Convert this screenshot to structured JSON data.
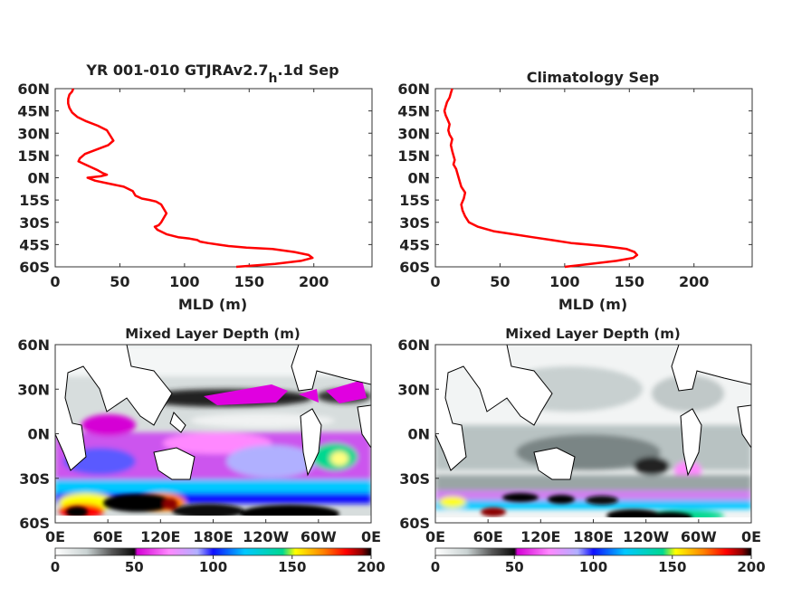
{
  "chart_data": [
    {
      "type": "line",
      "title": "YR 001-010 GTJRAv2.7",
      "title_sub": "h",
      "title_suffix": ".1d Sep",
      "xlabel": "MLD (m)",
      "ylabel": "",
      "xlim": [
        0,
        245
      ],
      "ylim": [
        -60,
        60
      ],
      "xticks": [
        "0",
        "50",
        "100",
        "150",
        "200"
      ],
      "xtick_values": [
        0,
        50,
        100,
        150,
        200
      ],
      "yticks": [
        "60N",
        "45N",
        "30N",
        "15N",
        "0N",
        "15S",
        "30S",
        "45S",
        "60S"
      ],
      "ytick_values": [
        60,
        45,
        30,
        15,
        0,
        -15,
        -30,
        -45,
        -60
      ],
      "line_color": "#ff0000",
      "series": [
        {
          "x": [
            14,
            13,
            11,
            10,
            10,
            11,
            13,
            17,
            24,
            33,
            40,
            45,
            41,
            32,
            23,
            19,
            18,
            23,
            28,
            33,
            37,
            40,
            35,
            25,
            31,
            42,
            53,
            60,
            62,
            67,
            73,
            78,
            82,
            84,
            86,
            84,
            82,
            80,
            77,
            79,
            86,
            95,
            104,
            110,
            112,
            118,
            126,
            134,
            148,
            168,
            185,
            196,
            199,
            190,
            170,
            140
          ],
          "y": [
            60,
            58,
            56,
            53,
            50,
            47,
            44,
            41,
            38,
            35,
            32,
            25,
            22,
            19,
            16,
            13,
            11,
            9,
            7,
            5,
            3,
            2,
            1,
            0,
            -2,
            -4,
            -6,
            -9,
            -12,
            -14,
            -15,
            -16,
            -18,
            -21,
            -24,
            -27,
            -30,
            -32,
            -33,
            -35,
            -38,
            -40,
            -41,
            -42,
            -43,
            -44,
            -45,
            -46,
            -47,
            -48,
            -50,
            -52,
            -54,
            -56,
            -58,
            -60
          ]
        }
      ]
    },
    {
      "type": "line",
      "title": "Climatology Sep",
      "xlabel": "MLD (m)",
      "ylabel": "",
      "xlim": [
        0,
        245
      ],
      "ylim": [
        -60,
        60
      ],
      "xticks": [
        "0",
        "50",
        "100",
        "150",
        "200"
      ],
      "xtick_values": [
        0,
        50,
        100,
        150,
        200
      ],
      "yticks": [
        "60N",
        "45N",
        "30N",
        "15N",
        "0N",
        "15S",
        "30S",
        "45S",
        "60S"
      ],
      "ytick_values": [
        60,
        45,
        30,
        15,
        0,
        -15,
        -30,
        -45,
        -60
      ],
      "line_color": "#ff0000",
      "series": [
        {
          "x": [
            13,
            12,
            11,
            9,
            8,
            7,
            8,
            9,
            11,
            10,
            11,
            13,
            12,
            13,
            14,
            15,
            14,
            16,
            17,
            18,
            19,
            20,
            23,
            22,
            20,
            21,
            23,
            26,
            33,
            45,
            60,
            75,
            90,
            105,
            118,
            130,
            140,
            148,
            154,
            156,
            153,
            140,
            120,
            100
          ],
          "y": [
            60,
            57,
            54,
            51,
            48,
            45,
            42,
            40,
            36,
            32,
            29,
            26,
            22,
            18,
            15,
            12,
            9,
            6,
            3,
            0,
            -3,
            -6,
            -10,
            -14,
            -18,
            -22,
            -26,
            -30,
            -33,
            -36,
            -38,
            -40,
            -42,
            -44,
            -45,
            -46,
            -47,
            -48,
            -50,
            -52,
            -54,
            -56,
            -58,
            -60
          ]
        }
      ]
    },
    {
      "type": "heatmap",
      "title": "Mixed Layer Depth (m)",
      "lon_ticks": [
        "0E",
        "60E",
        "120E",
        "180E",
        "120W",
        "60W",
        "0E"
      ],
      "lat_ticks": [
        "60N",
        "30N",
        "0N",
        "30S",
        "60S"
      ],
      "colorbar_ticks": [
        "0",
        "50",
        "100",
        "150",
        "200"
      ],
      "colorbar_range": [
        0,
        200
      ],
      "colormap": [
        "#ffffff",
        "#c9d2d2",
        "#555555",
        "#0b0b0b",
        "#d500d5",
        "#ff88ff",
        "#b0b0ff",
        "#1010ff",
        "#00c8ff",
        "#00d890",
        "#ffff00",
        "#ff8000",
        "#ff0000",
        "#8b0000",
        "#000000"
      ]
    },
    {
      "type": "heatmap",
      "title": "Mixed Layer Depth (m)",
      "lon_ticks": [
        "0E",
        "60E",
        "120E",
        "180E",
        "120W",
        "60W",
        "0E"
      ],
      "lat_ticks": [
        "60N",
        "30N",
        "0N",
        "30S",
        "60S"
      ],
      "colorbar_ticks": [
        "0",
        "50",
        "100",
        "150",
        "200"
      ],
      "colorbar_range": [
        0,
        200
      ],
      "colormap": [
        "#ffffff",
        "#c9d2d2",
        "#555555",
        "#0b0b0b",
        "#d500d5",
        "#ff88ff",
        "#b0b0ff",
        "#1010ff",
        "#00c8ff",
        "#00d890",
        "#ffff00",
        "#ff8000",
        "#ff0000",
        "#8b0000",
        "#000000"
      ]
    }
  ]
}
